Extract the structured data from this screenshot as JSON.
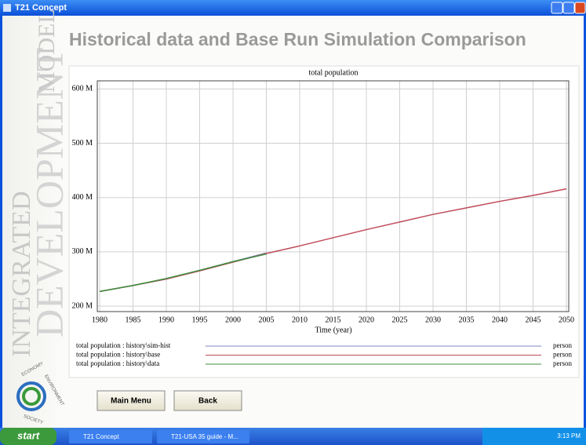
{
  "window": {
    "title": "T21 Concept"
  },
  "sidebar": {
    "words": [
      "INTEGRATED",
      "DEVELOPMENT",
      "MODEL"
    ],
    "logo": [
      "ECONOMY",
      "ENVIRONMENT",
      "SOCIETY"
    ]
  },
  "header": {
    "title": "Historical data and Base Run Simulation Comparison"
  },
  "chart_data": {
    "type": "line",
    "title": "total population",
    "x_label": "Time (year)",
    "x": [
      1980,
      1985,
      1990,
      1995,
      2000,
      2005,
      2010,
      2015,
      2020,
      2025,
      2030,
      2035,
      2040,
      2045,
      2050
    ],
    "series": [
      {
        "name": "total population : history\\sim-hist",
        "unit": "person",
        "color": "#7f86c8",
        "values": [
          227000000,
          238000000,
          250000000,
          266000000,
          282000000,
          298000000,
          null,
          null,
          null,
          null,
          null,
          null,
          null,
          null,
          null
        ]
      },
      {
        "name": "total population : history\\base",
        "unit": "person",
        "color": "#c04a5a",
        "values": [
          227000000,
          238000000,
          250000000,
          265000000,
          281000000,
          297000000,
          311000000,
          326000000,
          341000000,
          355000000,
          369000000,
          381000000,
          393000000,
          404000000,
          416000000
        ]
      },
      {
        "name": "total population : history\\data",
        "unit": "person",
        "color": "#3c8f3c",
        "values": [
          227000000,
          238000000,
          251000000,
          266000000,
          282000000,
          296000000,
          null,
          null,
          null,
          null,
          null,
          null,
          null,
          null,
          null
        ]
      }
    ],
    "xlim": [
      1980,
      2050
    ],
    "xticks": [
      1980,
      1985,
      1990,
      1995,
      2000,
      2005,
      2010,
      2015,
      2020,
      2025,
      2030,
      2035,
      2040,
      2045,
      2050
    ],
    "ylim": [
      190000000,
      615000000
    ],
    "yticks": [
      {
        "value": 200000000,
        "label": "200 M"
      },
      {
        "value": 300000000,
        "label": "300 M"
      },
      {
        "value": 400000000,
        "label": "400 M"
      },
      {
        "value": 500000000,
        "label": "500 M"
      },
      {
        "value": 600000000,
        "label": "600 M"
      }
    ],
    "grid": true
  },
  "buttons": [
    "Main Menu",
    "Back"
  ],
  "taskbar": {
    "start": "start",
    "items": [
      "T21 Concept",
      "T21-USA 35 guide - M..."
    ],
    "clock": "3:13 PM"
  }
}
